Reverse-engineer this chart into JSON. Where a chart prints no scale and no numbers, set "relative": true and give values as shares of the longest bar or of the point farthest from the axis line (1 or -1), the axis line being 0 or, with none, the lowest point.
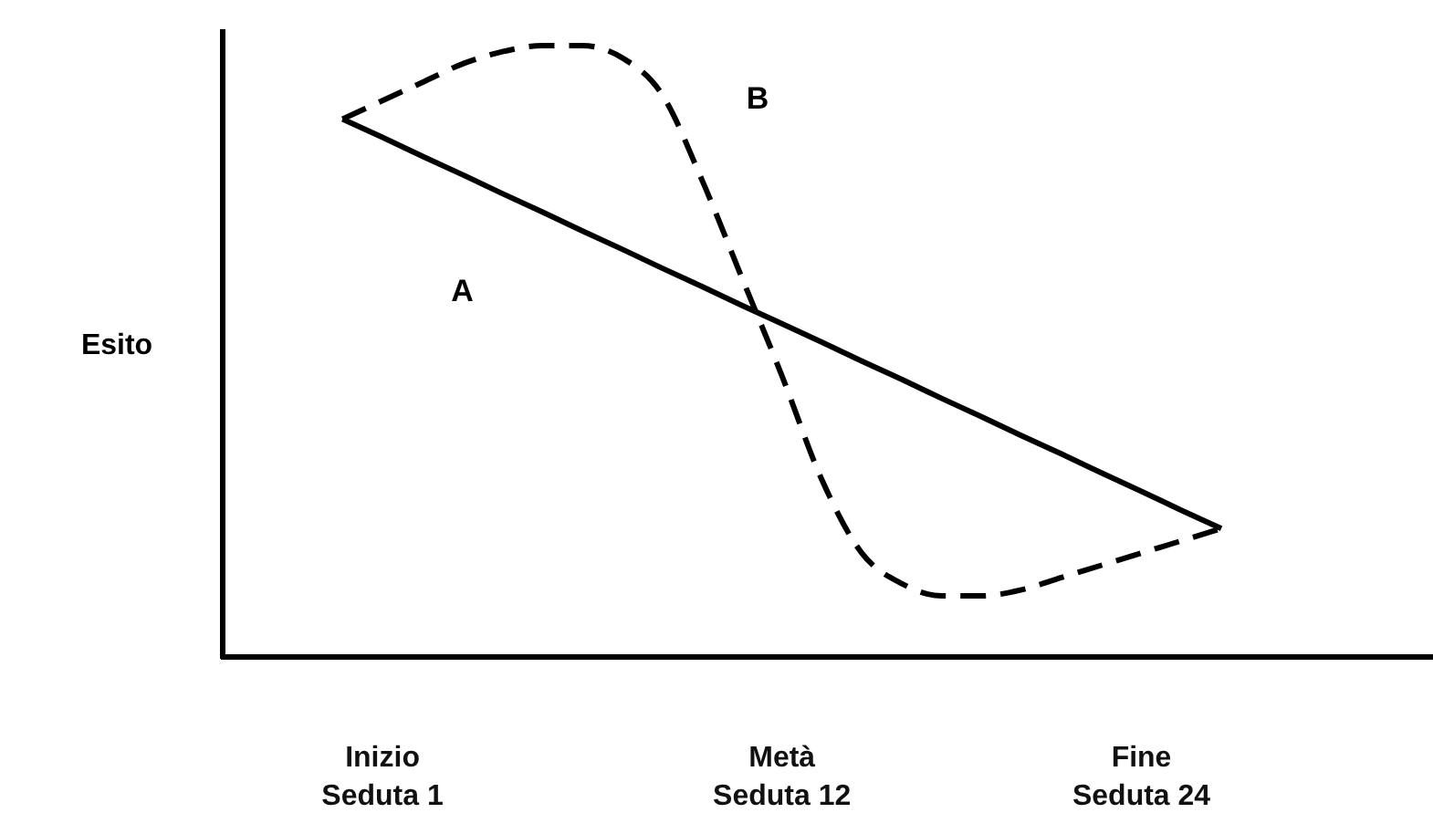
{
  "chart_data": {
    "type": "line",
    "relative": true,
    "annotations": [
      "Esito"
    ],
    "categories": [
      null,
      "Inizio\nSeduta 1",
      null,
      null,
      null,
      null,
      null,
      null,
      null,
      null,
      null,
      "Metà\nSeduta 12",
      null,
      null,
      null,
      null,
      null,
      null,
      null,
      null,
      "Fine\nSeduta 24",
      null,
      null
    ],
    "series": [
      {
        "name": "A",
        "color": "#000000",
        "line_style": "solid",
        "values": [
          0.88,
          0.85,
          0.819,
          0.789,
          0.758,
          0.728,
          0.697,
          0.667,
          0.636,
          0.606,
          0.575,
          0.545,
          0.515,
          0.484,
          0.454,
          0.423,
          0.393,
          0.362,
          0.332,
          0.301,
          0.271,
          0.24,
          0.21
        ]
      },
      {
        "name": "B",
        "color": "#000000",
        "line_style": "dashed",
        "values": [
          0.88,
          0.91,
          0.94,
          0.97,
          0.99,
          1,
          1,
          0.98,
          0.92,
          0.78,
          0.62,
          0.46,
          0.29,
          0.17,
          0.12,
          0.1,
          0.1,
          0.11,
          0.13,
          0.15,
          0.17,
          0.19,
          0.21
        ]
      }
    ],
    "marker": "none",
    "grid": false,
    "legend": false
  }
}
